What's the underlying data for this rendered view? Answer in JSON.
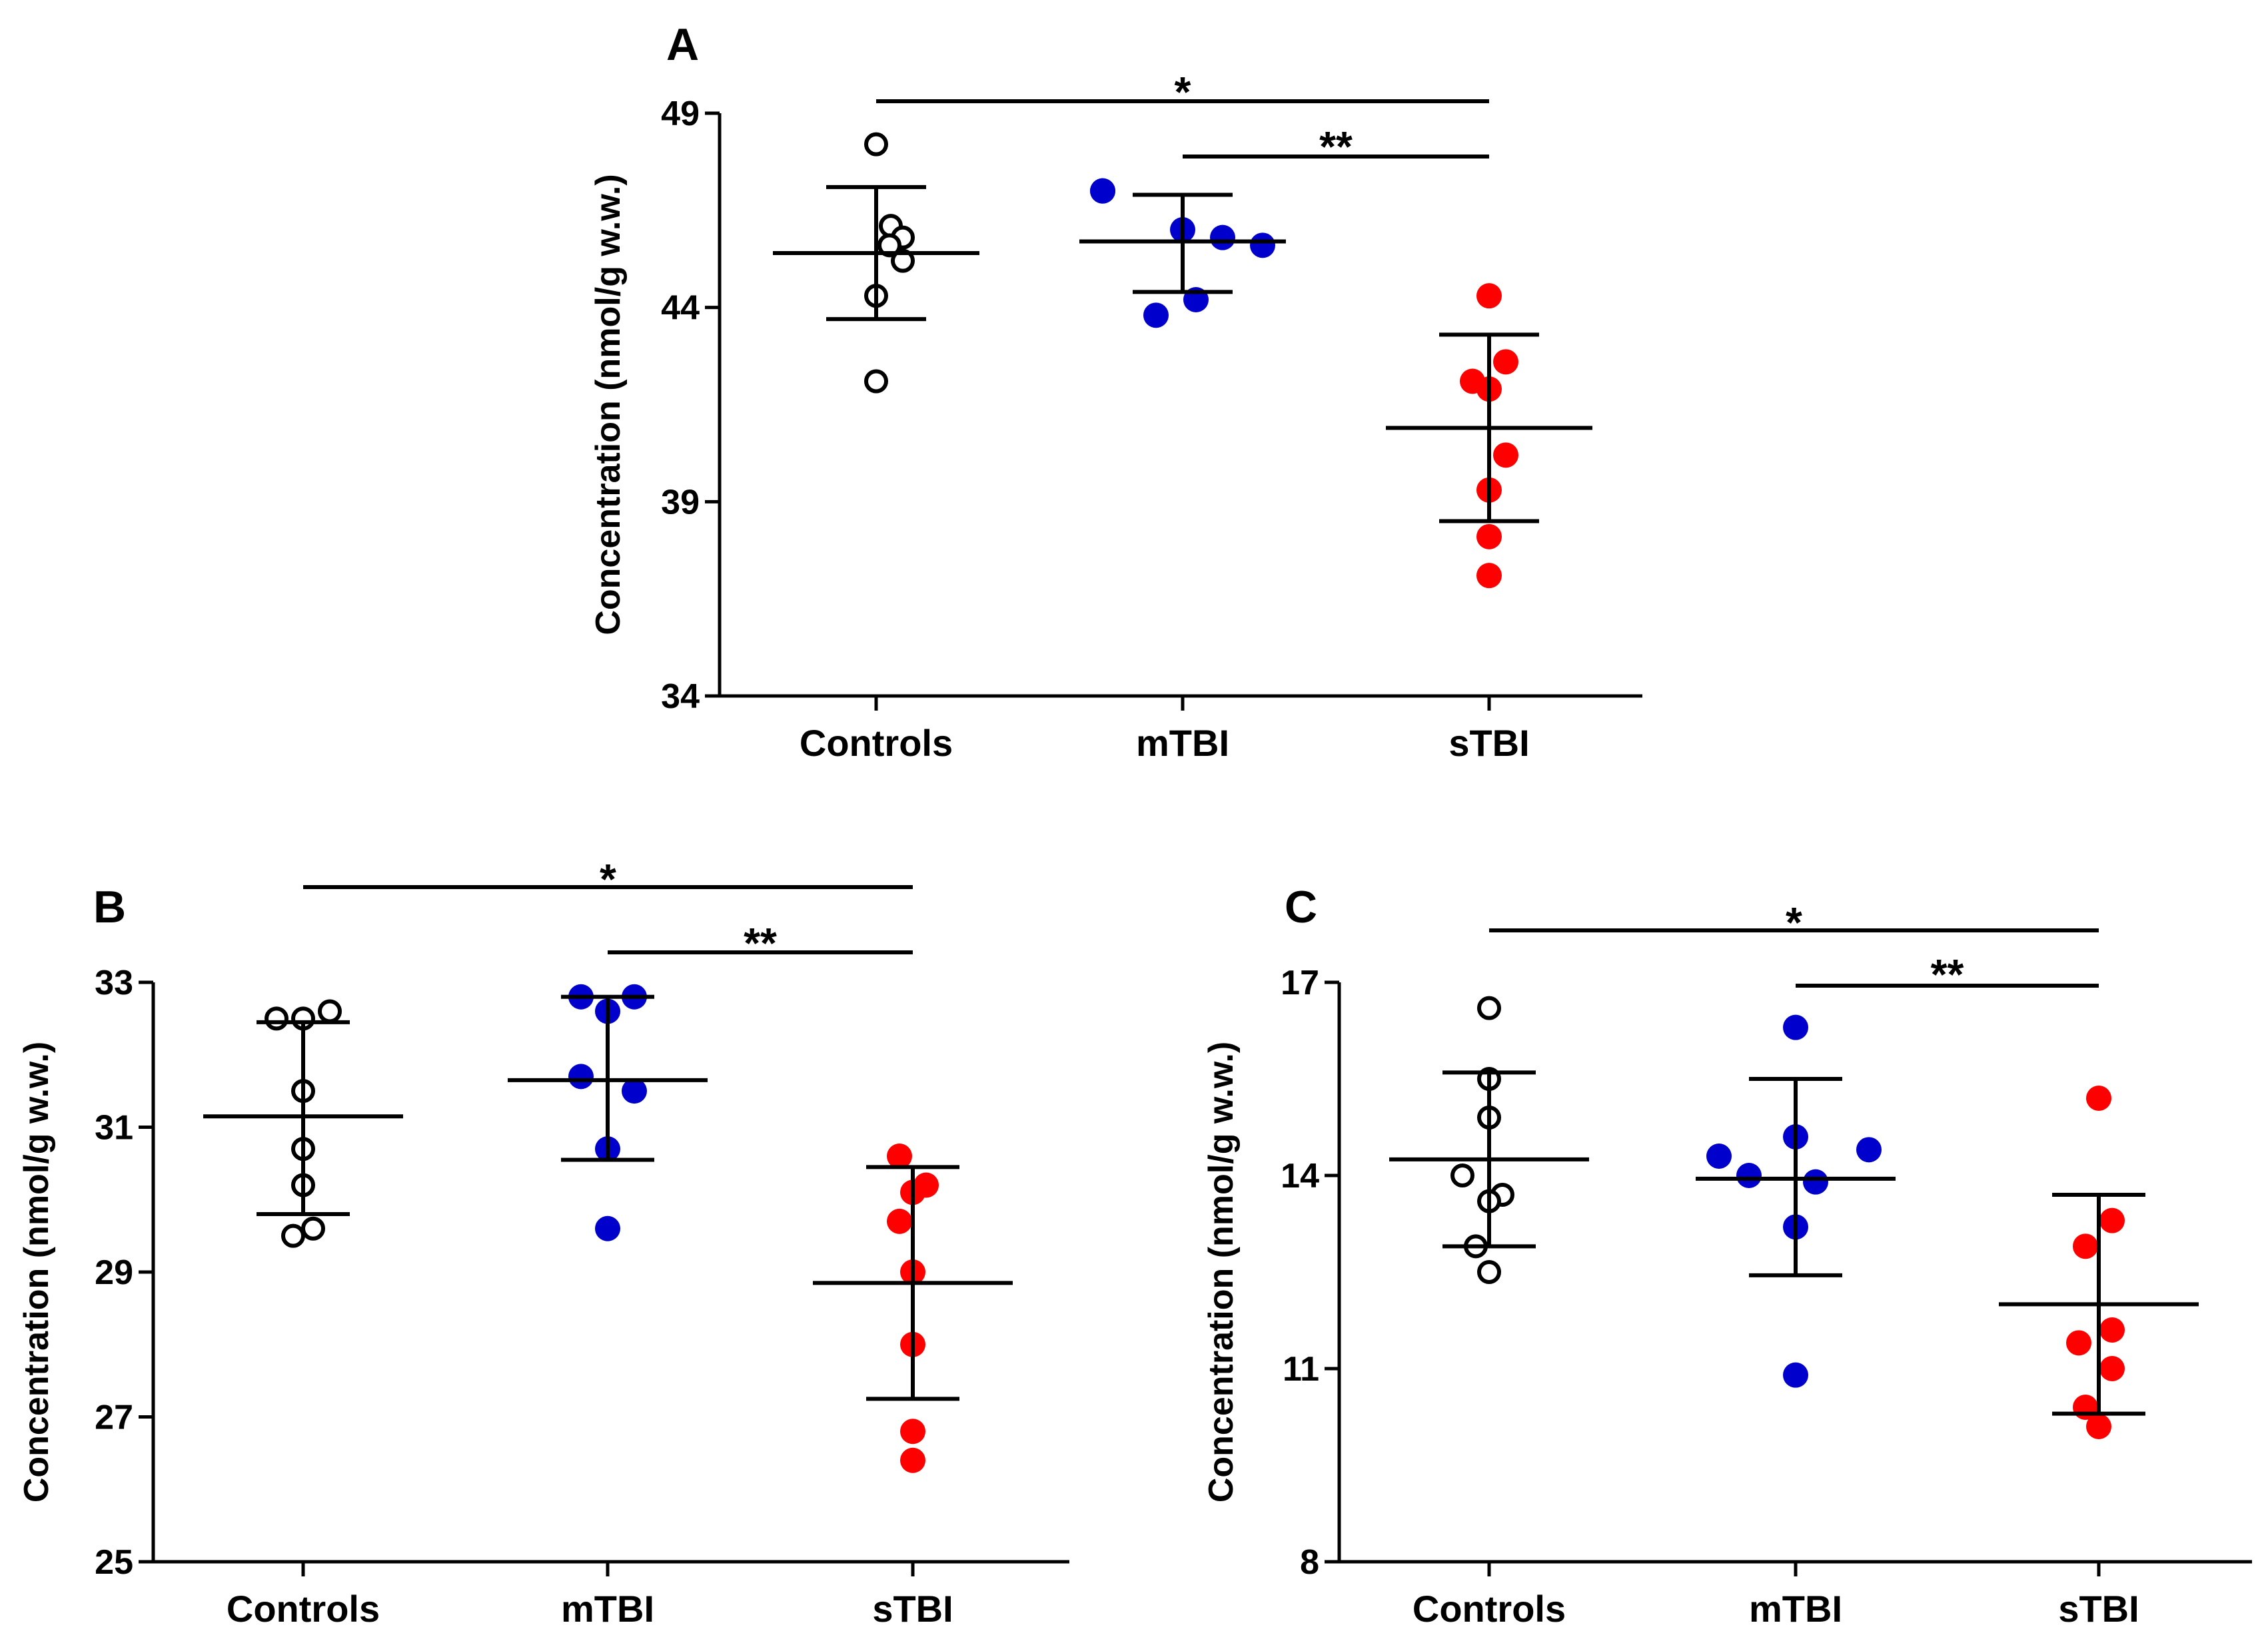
{
  "colors": {
    "controls": "#000000",
    "mTBI": "#0000cc",
    "sTBI": "#ff0000"
  },
  "chart_data": [
    {
      "panel": "A",
      "type": "scatter",
      "ylabel": "Concentration (nmol/g w.w.)",
      "ylim": [
        34,
        49
      ],
      "yticks": [
        34,
        39,
        44,
        49
      ],
      "categories": [
        "Controls",
        "mTBI",
        "sTBI"
      ],
      "series": [
        {
          "name": "Controls",
          "marker": "open",
          "values": [
            48.2,
            46.1,
            45.8,
            45.6,
            45.2,
            44.3,
            42.1
          ],
          "mean": 45.4,
          "sd_low": 43.7,
          "sd_high": 47.1
        },
        {
          "name": "mTBI",
          "marker": "filled",
          "values": [
            47.0,
            47.0,
            46.0,
            45.8,
            45.6,
            44.2,
            43.8
          ],
          "mean": 45.7,
          "sd_low": 44.4,
          "sd_high": 46.9
        },
        {
          "name": "sTBI",
          "marker": "filled",
          "values": [
            44.3,
            42.6,
            42.1,
            41.9,
            40.2,
            39.3,
            37.1,
            38.1
          ],
          "mean": 40.9,
          "sd_low": 38.5,
          "sd_high": 43.3
        }
      ],
      "significance": [
        {
          "from": "Controls",
          "to": "sTBI",
          "label": "*"
        },
        {
          "from": "mTBI",
          "to": "sTBI",
          "label": "**"
        }
      ]
    },
    {
      "panel": "B",
      "type": "scatter",
      "ylabel": "Concentration (nmol/g w.w.)",
      "ylim": [
        25,
        33
      ],
      "yticks": [
        25,
        27,
        29,
        31,
        33
      ],
      "categories": [
        "Controls",
        "mTBI",
        "sTBI"
      ],
      "series": [
        {
          "name": "Controls",
          "marker": "open",
          "values": [
            32.6,
            32.5,
            32.5,
            31.5,
            30.7,
            30.2,
            29.6,
            29.5
          ],
          "mean": 31.15,
          "sd_low": 29.8,
          "sd_high": 32.45
        },
        {
          "name": "mTBI",
          "marker": "filled",
          "values": [
            32.8,
            32.8,
            32.6,
            31.7,
            31.5,
            30.7,
            29.6
          ],
          "mean": 31.65,
          "sd_low": 30.55,
          "sd_high": 32.8
        },
        {
          "name": "sTBI",
          "marker": "filled",
          "values": [
            30.6,
            30.2,
            30.1,
            29.7,
            29.0,
            28.0,
            26.8,
            26.4
          ],
          "mean": 28.85,
          "sd_low": 27.25,
          "sd_high": 30.45
        }
      ],
      "significance": [
        {
          "from": "Controls",
          "to": "sTBI",
          "label": "*"
        },
        {
          "from": "mTBI",
          "to": "sTBI",
          "label": "**"
        }
      ]
    },
    {
      "panel": "C",
      "type": "scatter",
      "ylabel": "Concentration (nmol/g w.w.)",
      "ylim": [
        8,
        17
      ],
      "yticks": [
        8,
        11,
        14,
        17
      ],
      "categories": [
        "Controls",
        "mTBI",
        "sTBI"
      ],
      "series": [
        {
          "name": "Controls",
          "marker": "open",
          "values": [
            16.6,
            15.5,
            14.9,
            14.0,
            13.7,
            13.6,
            12.9,
            12.5
          ],
          "mean": 14.25,
          "sd_low": 12.9,
          "sd_high": 15.6
        },
        {
          "name": "mTBI",
          "marker": "filled",
          "values": [
            16.3,
            14.6,
            14.4,
            14.3,
            14.0,
            13.9,
            13.2,
            10.9
          ],
          "mean": 13.95,
          "sd_low": 12.45,
          "sd_high": 15.5
        },
        {
          "name": "sTBI",
          "marker": "filled",
          "values": [
            15.2,
            13.3,
            12.9,
            11.6,
            11.4,
            11.0,
            10.4,
            10.1
          ],
          "mean": 12.0,
          "sd_low": 10.3,
          "sd_high": 13.7
        }
      ],
      "significance": [
        {
          "from": "Controls",
          "to": "sTBI",
          "label": "*"
        },
        {
          "from": "mTBI",
          "to": "sTBI",
          "label": "**"
        }
      ]
    }
  ]
}
